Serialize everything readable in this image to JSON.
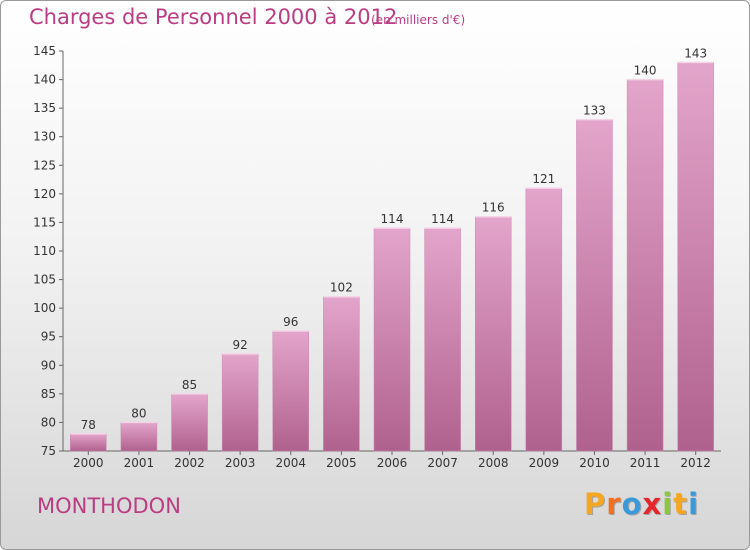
{
  "header": {
    "title": "Charges de Personnel 2000 à 2012",
    "subtitle": "(en milliers d'€)"
  },
  "footer": {
    "location": "MONTHODON",
    "brand": "Proxiti",
    "brand_colors": [
      "#f5a623",
      "#f37021",
      "#3a9ad9",
      "#e5262c",
      "#8cc63f",
      "#f5a623",
      "#3a9ad9"
    ]
  },
  "chart_data": {
    "type": "bar",
    "title": "Charges de Personnel 2000 à 2012",
    "subtitle": "(en milliers d'€)",
    "categories": [
      "2000",
      "2001",
      "2002",
      "2003",
      "2004",
      "2005",
      "2006",
      "2007",
      "2008",
      "2009",
      "2010",
      "2011",
      "2012"
    ],
    "values": [
      78,
      80,
      85,
      92,
      96,
      102,
      114,
      114,
      116,
      121,
      133,
      140,
      143
    ],
    "ylim": [
      75,
      145
    ],
    "yticks": [
      75,
      80,
      85,
      90,
      95,
      100,
      105,
      110,
      115,
      120,
      125,
      130,
      135,
      140,
      145
    ],
    "grid": false,
    "bar_color_top": "#e3a5cb",
    "bar_color_bottom": "#b0618e"
  }
}
